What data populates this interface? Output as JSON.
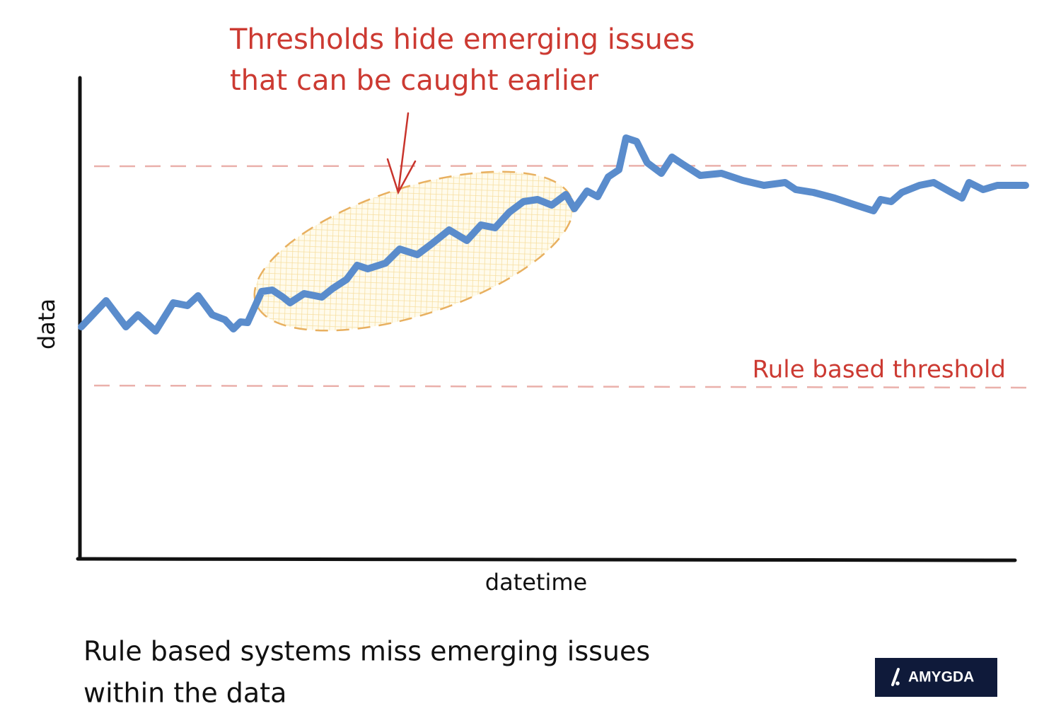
{
  "annotation": {
    "lines": [
      "Thresholds hide emerging issues",
      "that can be caught earlier"
    ]
  },
  "threshold_label": "Rule based threshold",
  "y_axis_label": "data",
  "x_axis_label": "datetime",
  "caption": {
    "lines": [
      "Rule based systems miss emerging issues",
      "within the data"
    ]
  },
  "logo": {
    "text": "AMYGDA"
  }
}
